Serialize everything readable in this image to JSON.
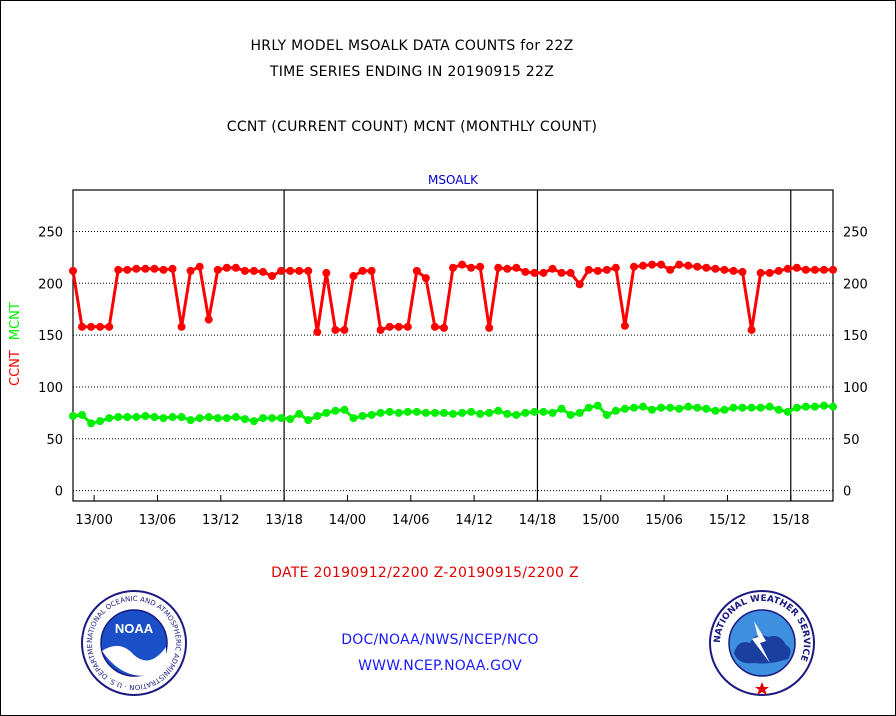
{
  "header": {
    "title_line1": "HRLY MODEL MSOALK DATA COUNTS for 22Z",
    "title_line2": "TIME SERIES ENDING IN 20190915 22Z",
    "subtitle": "CCNT (CURRENT COUNT) MCNT (MONTHLY COUNT)"
  },
  "footer": {
    "date_range": "DATE 20190912/2200 Z-20190915/2200 Z",
    "org": "DOC/NOAA/NWS/NCEP/NCO",
    "url": "WWW.NCEP.NOAA.GOV"
  },
  "logos": {
    "left": {
      "text": "NOAA",
      "ring_text": "NATIONAL OCEANIC AND ATMOSPHERIC ADMINISTRATION · U.S. DEPARTMENT OF COMMERCE",
      "icon": "noaa-logo-icon"
    },
    "right": {
      "ring_text": "NATIONAL WEATHER SERVICE",
      "icon": "nws-logo-icon"
    }
  },
  "chart_data": {
    "type": "line",
    "title": "MSOALK",
    "ylabel_ccnt": "CCNT",
    "ylabel_mcnt": "MCNT",
    "ylim": [
      -10,
      290
    ],
    "y_ticks": [
      0,
      50,
      100,
      150,
      200,
      250
    ],
    "x_tick_labels": [
      "13/00",
      "13/06",
      "13/12",
      "13/18",
      "14/00",
      "14/06",
      "14/12",
      "14/18",
      "15/00",
      "15/06",
      "15/12",
      "15/18"
    ],
    "x_tick_hours": [
      2,
      8,
      14,
      20,
      26,
      32,
      38,
      44,
      50,
      56,
      62,
      68
    ],
    "x_range_hours": [
      0,
      72
    ],
    "day_boundary_hours": [
      20,
      44,
      68
    ],
    "grid": "horizontal-dotted",
    "colors": {
      "ccnt": "#ff0000",
      "mcnt": "#00ee00",
      "title": "#0000cc",
      "axis": "#000000"
    },
    "series": [
      {
        "name": "CCNT",
        "color": "#ff0000",
        "values": [
          212,
          158,
          158,
          158,
          158,
          213,
          213,
          214,
          214,
          214,
          213,
          214,
          158,
          212,
          216,
          165,
          213,
          215,
          215,
          212,
          212,
          211,
          207,
          212,
          212,
          212,
          212,
          153,
          210,
          155,
          155,
          207,
          212,
          212,
          155,
          158,
          158,
          158,
          212,
          205,
          158,
          157,
          215,
          218,
          215,
          216,
          157,
          215,
          214,
          215,
          211,
          210,
          210,
          214,
          210,
          210,
          199,
          213,
          212,
          213,
          215,
          159,
          216,
          217,
          218,
          218,
          213,
          218,
          217,
          216,
          215,
          214,
          213,
          212,
          211,
          155,
          210,
          210,
          212,
          214,
          215,
          213,
          213,
          213,
          213
        ]
      },
      {
        "name": "MCNT",
        "color": "#00ee00",
        "values": [
          72,
          73,
          65,
          67,
          70,
          71,
          71,
          71,
          72,
          71,
          70,
          71,
          71,
          68,
          70,
          71,
          70,
          70,
          71,
          69,
          67,
          70,
          70,
          70,
          69,
          74,
          68,
          72,
          75,
          77,
          78,
          70,
          72,
          73,
          75,
          76,
          75,
          76,
          76,
          75,
          75,
          75,
          74,
          75,
          76,
          74,
          75,
          77,
          74,
          73,
          75,
          76,
          76,
          75,
          79,
          73,
          75,
          80,
          82,
          73,
          77,
          79,
          80,
          81,
          78,
          80,
          80,
          79,
          81,
          80,
          79,
          77,
          78,
          80,
          80,
          80,
          80,
          81,
          78,
          76,
          80,
          81,
          81,
          82,
          81
        ]
      }
    ]
  }
}
